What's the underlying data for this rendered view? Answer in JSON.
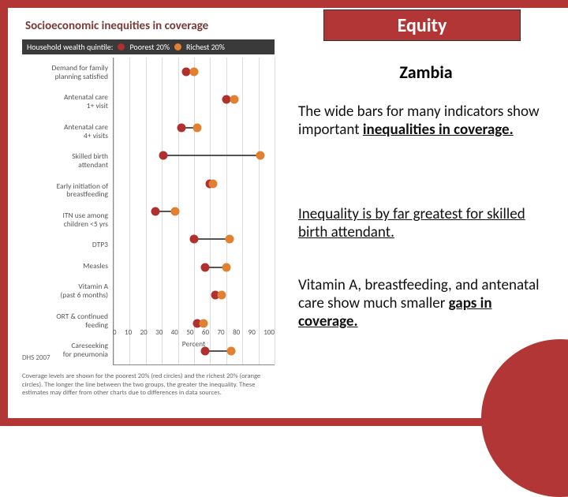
{
  "badge": "Equity",
  "country": "Zambia",
  "para1": "The wide bars for many indicators show important",
  "para1_emph": "inequalities in coverage.",
  "para2": "Inequality is by far greatest for skilled birth attendant.",
  "para3a": "Vitamin A, breastfeeding, and antenatal care show much smaller ",
  "para3_emph": "gaps in coverage.",
  "chart": {
    "title": "Socioeconomic inequities in coverage",
    "legend_label": "Household wealth quintile:",
    "legend_poor": "Poorest 20%",
    "legend_rich": "Richest 20%",
    "color_poor": "#b03030",
    "color_rich": "#e08030",
    "x_label": "Percent",
    "xmin": 0,
    "xmax": 100,
    "ticks": [
      0,
      10,
      20,
      30,
      40,
      50,
      60,
      70,
      80,
      90,
      100
    ],
    "rows": [
      {
        "label": "Demand for family\nplanning satisfied",
        "poor": 45,
        "rich": 50
      },
      {
        "label": "Antenatal care\n1+ visit",
        "poor": 70,
        "rich": 75
      },
      {
        "label": "Antenatal care\n4+ visits",
        "poor": 42,
        "rich": 52
      },
      {
        "label": "Skilled birth\nattendant",
        "poor": 31,
        "rich": 91
      },
      {
        "label": "Early initiation of\nbreastfeeding",
        "poor": 60,
        "rich": 62
      },
      {
        "label": "ITN use among\nchildren <5 yrs",
        "poor": 26,
        "rich": 38
      },
      {
        "label": "DTP3",
        "poor": 50,
        "rich": 72
      },
      {
        "label": "Measles",
        "poor": 57,
        "rich": 70
      },
      {
        "label": "Vitamin A\n(past 6 months)",
        "poor": 63,
        "rich": 67
      },
      {
        "label": "ORT & continued\nfeeding",
        "poor": 52,
        "rich": 56
      },
      {
        "label": "Careseeking\nfor pneumonia",
        "poor": 57,
        "rich": 73
      }
    ],
    "source": "DHS 2007",
    "footnote": "Coverage levels are shown for the poorest 20% (red circles) and the richest 20% (orange circles). The longer the line between the two groups, the greater the inequality. These estimates may differ from other charts due to differences in data sources."
  }
}
